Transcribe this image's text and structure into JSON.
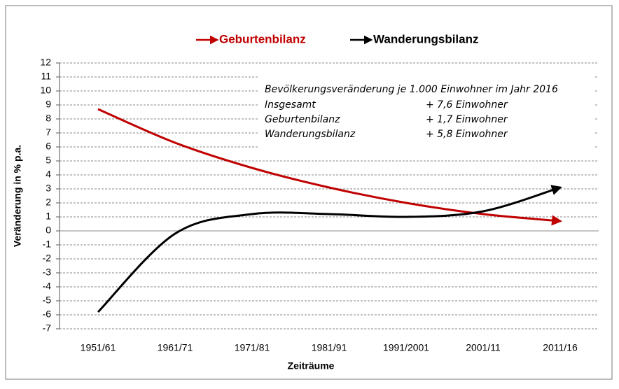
{
  "chart_data": {
    "type": "line",
    "categories": [
      "1951/61",
      "1961/71",
      "1971/81",
      "1981/91",
      "1991/2001",
      "2001/11",
      "2011/16"
    ],
    "series": [
      {
        "name": "Geburtenbilanz",
        "color": "#c00000",
        "values": [
          8.7,
          6.3,
          4.5,
          3.1,
          2.0,
          1.2,
          0.7
        ]
      },
      {
        "name": "Wanderungsbilanz",
        "color": "#000000",
        "values": [
          -5.8,
          -0.2,
          1.2,
          1.2,
          1.0,
          1.4,
          3.1
        ]
      }
    ],
    "ylim": [
      -7,
      12
    ],
    "yticks": [
      -7,
      -6,
      -5,
      -4,
      -3,
      -2,
      -1,
      0,
      1,
      2,
      3,
      4,
      5,
      6,
      7,
      8,
      9,
      10,
      11,
      12
    ],
    "grid": true,
    "ylabel": "Veränderung in % p.a.",
    "xlabel": "Zeiträume",
    "annotation": {
      "title": "Bevölkerungsveränderung je 1.000 Einwohner im Jahr 2016",
      "rows": [
        [
          "Insgesamt",
          "+ 7,6 Einwohner"
        ],
        [
          "Geburtenbilanz",
          "+ 1,7 Einwohner"
        ],
        [
          "Wanderungsbilanz",
          "+ 5,8 Einwohner"
        ]
      ]
    }
  }
}
